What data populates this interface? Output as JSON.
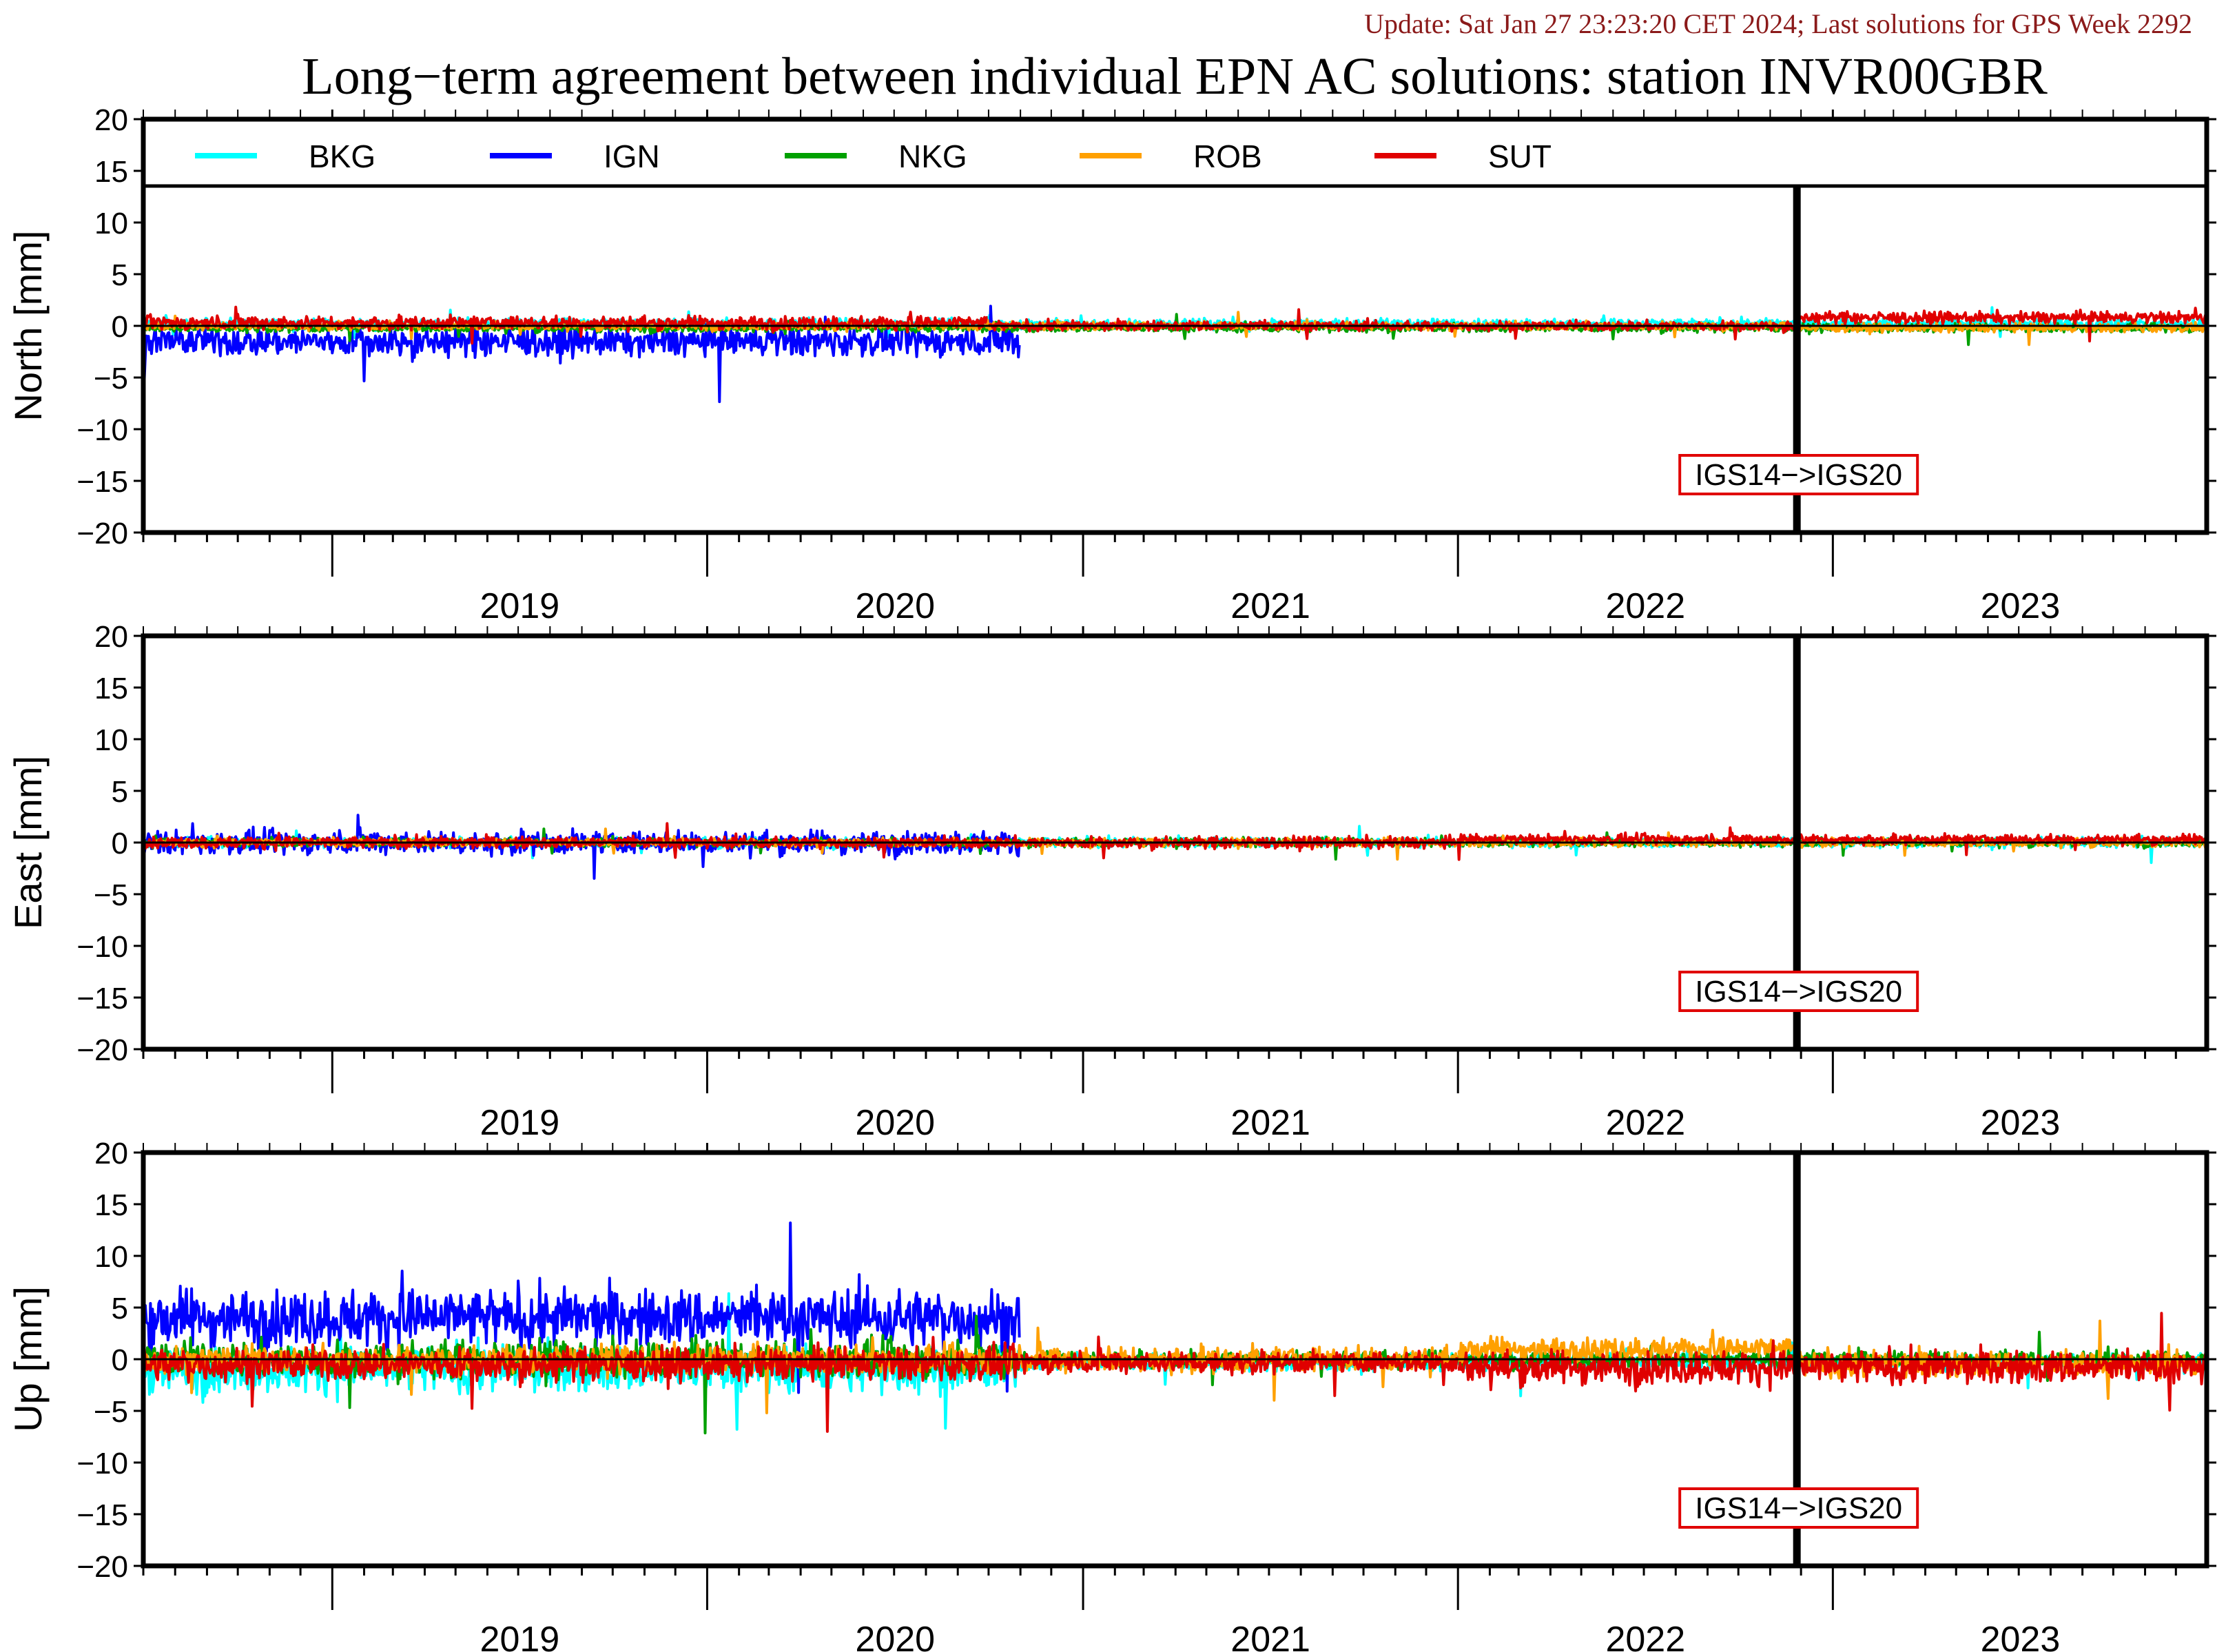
{
  "header": {
    "update_line": "Update: Sat Jan 27 23:23:20 CET 2024; Last solutions for GPS Week 2292",
    "update_color": "#8b1a1a",
    "title": "Long−term agreement between individual EPN AC solutions: station INVR00GBR"
  },
  "legend": [
    {
      "name": "BKG",
      "color": "#00ffff"
    },
    {
      "name": "IGN",
      "color": "#0000ff"
    },
    {
      "name": "NKG",
      "color": "#00a000"
    },
    {
      "name": "ROB",
      "color": "#ffa000"
    },
    {
      "name": "SUT",
      "color": "#e00000"
    }
  ],
  "chart_data": [
    {
      "type": "line",
      "ylabel": "North [mm]",
      "ylim": [
        -20,
        20
      ],
      "yticks": [
        20,
        15,
        10,
        5,
        0,
        -5,
        -10,
        -15,
        -20
      ],
      "yticklabels": [
        "20",
        "15",
        "10",
        "5",
        "0",
        "−5",
        "−10",
        "−15",
        "−20"
      ],
      "xlim": [
        "2018-07-01",
        "2023-12-31"
      ],
      "xticklabels": [
        "2019",
        "2020",
        "2021",
        "2022",
        "2023"
      ],
      "legend": "top",
      "reference_change": {
        "date": "2022-11-27",
        "label": "IGS14−>IGS20"
      },
      "series": [
        {
          "name": "BKG",
          "segments": [
            {
              "start": "2018-07-01",
              "end": "2023-12-31",
              "mean": 0.2,
              "amp": 0.6
            }
          ]
        },
        {
          "name": "IGN",
          "segments": [
            {
              "start": "2018-07-01",
              "end": "2020-10-31",
              "mean": -1.5,
              "amp": 1.8
            }
          ]
        },
        {
          "name": "NKG",
          "segments": [
            {
              "start": "2018-07-01",
              "end": "2023-12-31",
              "mean": -0.2,
              "amp": 0.5
            }
          ]
        },
        {
          "name": "ROB",
          "segments": [
            {
              "start": "2018-07-01",
              "end": "2022-11-27",
              "mean": 0.0,
              "amp": 0.5
            },
            {
              "start": "2022-11-27",
              "end": "2023-12-31",
              "mean": -0.2,
              "amp": 0.5
            }
          ]
        },
        {
          "name": "SUT",
          "segments": [
            {
              "start": "2018-07-01",
              "end": "2020-09-30",
              "mean": 0.3,
              "amp": 0.8
            },
            {
              "start": "2020-10-01",
              "end": "2022-11-27",
              "mean": 0.0,
              "amp": 0.6
            },
            {
              "start": "2022-11-27",
              "end": "2023-12-31",
              "mean": 0.8,
              "amp": 0.7
            }
          ]
        }
      ]
    },
    {
      "type": "line",
      "ylabel": "East [mm]",
      "ylim": [
        -20,
        20
      ],
      "yticks": [
        20,
        15,
        10,
        5,
        0,
        -5,
        -10,
        -15,
        -20
      ],
      "yticklabels": [
        "20",
        "15",
        "10",
        "5",
        "0",
        "−5",
        "−10",
        "−15",
        "−20"
      ],
      "xlim": [
        "2018-07-01",
        "2023-12-31"
      ],
      "xticklabels": [
        "2019",
        "2020",
        "2021",
        "2022",
        "2023"
      ],
      "reference_change": {
        "date": "2022-11-27",
        "label": "IGS14−>IGS20"
      },
      "series": [
        {
          "name": "BKG",
          "segments": [
            {
              "start": "2018-07-01",
              "end": "2023-12-31",
              "mean": 0.0,
              "amp": 0.6
            }
          ]
        },
        {
          "name": "IGN",
          "segments": [
            {
              "start": "2018-07-01",
              "end": "2020-10-31",
              "mean": 0.0,
              "amp": 1.4
            }
          ]
        },
        {
          "name": "NKG",
          "segments": [
            {
              "start": "2018-07-01",
              "end": "2023-12-31",
              "mean": 0.0,
              "amp": 0.5
            }
          ]
        },
        {
          "name": "ROB",
          "segments": [
            {
              "start": "2018-07-01",
              "end": "2023-12-31",
              "mean": 0.0,
              "amp": 0.5
            }
          ]
        },
        {
          "name": "SUT",
          "segments": [
            {
              "start": "2018-07-01",
              "end": "2021-12-31",
              "mean": 0.0,
              "amp": 0.7
            },
            {
              "start": "2022-01-01",
              "end": "2023-12-31",
              "mean": 0.3,
              "amp": 0.6
            }
          ]
        }
      ]
    },
    {
      "type": "line",
      "ylabel": "Up [mm]",
      "ylim": [
        -20,
        20
      ],
      "yticks": [
        20,
        15,
        10,
        5,
        0,
        -5,
        -10,
        -15,
        -20
      ],
      "yticklabels": [
        "20",
        "15",
        "10",
        "5",
        "0",
        "−5",
        "−10",
        "−15",
        "−20"
      ],
      "xlim": [
        "2018-07-01",
        "2023-12-31"
      ],
      "xticklabels": [
        "2019",
        "2020",
        "2021",
        "2022",
        "2023"
      ],
      "reference_change": {
        "date": "2022-11-27",
        "label": "IGS14−>IGS20"
      },
      "series": [
        {
          "name": "BKG",
          "segments": [
            {
              "start": "2018-07-01",
              "end": "2020-10-31",
              "mean": -1.0,
              "amp": 2.8
            },
            {
              "start": "2020-11-01",
              "end": "2023-12-31",
              "mean": -0.3,
              "amp": 1.0
            }
          ]
        },
        {
          "name": "IGN",
          "segments": [
            {
              "start": "2018-07-01",
              "end": "2020-10-31",
              "mean": 4.0,
              "amp": 3.5
            }
          ]
        },
        {
          "name": "NKG",
          "segments": [
            {
              "start": "2018-07-01",
              "end": "2020-10-31",
              "mean": 0.0,
              "amp": 2.2
            },
            {
              "start": "2020-11-01",
              "end": "2023-12-31",
              "mean": 0.0,
              "amp": 1.0
            }
          ]
        },
        {
          "name": "ROB",
          "segments": [
            {
              "start": "2018-07-01",
              "end": "2021-12-31",
              "mean": 0.0,
              "amp": 1.6
            },
            {
              "start": "2022-01-01",
              "end": "2022-11-27",
              "mean": 1.0,
              "amp": 1.4
            },
            {
              "start": "2022-11-27",
              "end": "2023-12-31",
              "mean": -0.5,
              "amp": 1.6
            }
          ]
        },
        {
          "name": "SUT",
          "segments": [
            {
              "start": "2018-07-01",
              "end": "2020-10-31",
              "mean": -0.5,
              "amp": 2.0
            },
            {
              "start": "2020-11-01",
              "end": "2021-12-31",
              "mean": -0.3,
              "amp": 1.3
            },
            {
              "start": "2022-01-01",
              "end": "2023-12-31",
              "mean": -0.8,
              "amp": 2.0
            }
          ]
        }
      ]
    }
  ]
}
